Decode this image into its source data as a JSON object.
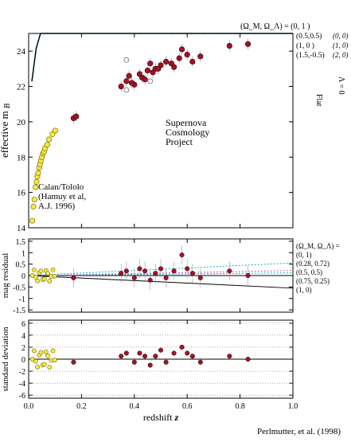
{
  "chart_data": [
    {
      "type": "scatter",
      "panel": "top",
      "ylabel": "effective m",
      "ylabel_sub": "B",
      "xlim": [
        0,
        1.0
      ],
      "ylim": [
        14,
        25
      ],
      "yticks": [
        14,
        16,
        18,
        20,
        22,
        24
      ],
      "legend_header": "(Ω_M, Ω_Λ) = (0,   1 )",
      "curves": [
        {
          "name": "(0.5,0.5)",
          "alt": "(0, 0)",
          "color": "#1bb0d8",
          "dashed": true,
          "offset": 0.35
        },
        {
          "name": "(1,   0 )",
          "alt": "(1, 0)",
          "color": "#1a90b8",
          "dashed": false,
          "offset": 0.0
        },
        {
          "name": "(1.5,-0.5)",
          "alt": "(2, 0)",
          "color": "#1a80a8",
          "dashed": false,
          "offset": -0.2
        },
        {
          "name": "",
          "alt": "",
          "color": "#000000",
          "dashed": false,
          "offset": 0.1
        }
      ],
      "flat_label": "Flat",
      "lambda_label": "Λ = 0",
      "annotations": [
        "Supernova",
        "Cosmology",
        "Project",
        "Calan/Tololo",
        "(Hamuy et al,",
        "A.J. 1996)"
      ],
      "low_z_points": [
        {
          "x": 0.014,
          "y": 14.4
        },
        {
          "x": 0.018,
          "y": 15.2
        },
        {
          "x": 0.022,
          "y": 15.6
        },
        {
          "x": 0.026,
          "y": 16.3
        },
        {
          "x": 0.03,
          "y": 16.6
        },
        {
          "x": 0.033,
          "y": 16.9
        },
        {
          "x": 0.036,
          "y": 17.1
        },
        {
          "x": 0.04,
          "y": 17.4
        },
        {
          "x": 0.043,
          "y": 17.6
        },
        {
          "x": 0.046,
          "y": 17.8
        },
        {
          "x": 0.05,
          "y": 18.0
        },
        {
          "x": 0.054,
          "y": 18.2
        },
        {
          "x": 0.058,
          "y": 18.3
        },
        {
          "x": 0.062,
          "y": 18.5
        },
        {
          "x": 0.07,
          "y": 18.7
        },
        {
          "x": 0.077,
          "y": 19.0
        },
        {
          "x": 0.09,
          "y": 19.3
        },
        {
          "x": 0.101,
          "y": 19.5
        }
      ],
      "high_z_points": [
        {
          "x": 0.17,
          "y": 20.2
        },
        {
          "x": 0.18,
          "y": 20.3
        },
        {
          "x": 0.35,
          "y": 22.0
        },
        {
          "x": 0.37,
          "y": 22.3
        },
        {
          "x": 0.38,
          "y": 22.6
        },
        {
          "x": 0.4,
          "y": 22.1
        },
        {
          "x": 0.42,
          "y": 22.7
        },
        {
          "x": 0.43,
          "y": 22.5
        },
        {
          "x": 0.45,
          "y": 22.9
        },
        {
          "x": 0.46,
          "y": 23.3
        },
        {
          "x": 0.47,
          "y": 22.8
        },
        {
          "x": 0.48,
          "y": 23.0
        },
        {
          "x": 0.5,
          "y": 23.2
        },
        {
          "x": 0.52,
          "y": 23.4
        },
        {
          "x": 0.55,
          "y": 23.1
        },
        {
          "x": 0.57,
          "y": 23.6
        },
        {
          "x": 0.6,
          "y": 23.8
        },
        {
          "x": 0.62,
          "y": 23.4
        },
        {
          "x": 0.65,
          "y": 23.7
        },
        {
          "x": 0.76,
          "y": 24.3
        },
        {
          "x": 0.83,
          "y": 24.4
        },
        {
          "x": 0.39,
          "y": 22.2
        },
        {
          "x": 0.44,
          "y": 22.4
        },
        {
          "x": 0.49,
          "y": 23.0
        },
        {
          "x": 0.54,
          "y": 23.3
        },
        {
          "x": 0.58,
          "y": 24.1
        }
      ],
      "hollow_points": [
        {
          "x": 0.37,
          "y": 23.5
        },
        {
          "x": 0.37,
          "y": 21.8
        },
        {
          "x": 0.46,
          "y": 22.3
        }
      ]
    },
    {
      "type": "scatter",
      "panel": "middle",
      "ylabel": "mag residual",
      "xlim": [
        0,
        1.0
      ],
      "ylim": [
        -1.6,
        1.6
      ],
      "yticks": [
        1.5,
        1.0,
        0.5,
        0,
        -0.5,
        -1.0,
        -1.5
      ],
      "ytick_labels": [
        "1.5",
        "1",
        "0.5",
        "0",
        "-0.5",
        "-1",
        "-1.5"
      ],
      "legend": [
        {
          "name": "(Ω_M, Ω_Λ) =",
          "color": "#9a80c8"
        },
        {
          "name": "(0,      1)",
          "color": "#1bb0d8",
          "slope": 0.55
        },
        {
          "name": "(0.28,  0.72)",
          "color": "#000000",
          "slope": 0.0
        },
        {
          "name": "(0.5,   0.5)",
          "color": "#c060c0",
          "slope": 0.22
        },
        {
          "name": "(0.75,  0.25)",
          "color": "#1bb0d8",
          "slope": 0.12
        },
        {
          "name": "(1,      0)",
          "color": "#000000",
          "slope": -0.55
        }
      ],
      "points": [
        {
          "x": 0.17,
          "y": -0.1
        },
        {
          "x": 0.35,
          "y": 0.1
        },
        {
          "x": 0.37,
          "y": 0.2
        },
        {
          "x": 0.4,
          "y": -0.1
        },
        {
          "x": 0.42,
          "y": 0.3
        },
        {
          "x": 0.44,
          "y": 0.2
        },
        {
          "x": 0.46,
          "y": -0.2
        },
        {
          "x": 0.48,
          "y": 0.1
        },
        {
          "x": 0.5,
          "y": 0.3
        },
        {
          "x": 0.52,
          "y": -0.1
        },
        {
          "x": 0.55,
          "y": 0.2
        },
        {
          "x": 0.58,
          "y": 0.9
        },
        {
          "x": 0.6,
          "y": 0.3
        },
        {
          "x": 0.62,
          "y": 0.1
        },
        {
          "x": 0.65,
          "y": -0.1
        },
        {
          "x": 0.76,
          "y": 0.2
        },
        {
          "x": 0.83,
          "y": 0.0
        }
      ]
    },
    {
      "type": "scatter",
      "panel": "bottom",
      "ylabel": "standard deviation",
      "xlabel": "redshift",
      "xlabel_var": "z",
      "xlim": [
        0,
        1.0
      ],
      "ylim": [
        -6.5,
        6.5
      ],
      "xticks": [
        0,
        0.2,
        0.4,
        0.6,
        0.8,
        1.0
      ],
      "xtick_labels": [
        "0.0",
        "0.2",
        "0.4",
        "0.6",
        "0.8",
        "1.0"
      ],
      "yticks": [
        6,
        4,
        2,
        0,
        -2,
        -4,
        -6
      ],
      "points": [
        {
          "x": 0.17,
          "y": -0.5
        },
        {
          "x": 0.35,
          "y": 0.5
        },
        {
          "x": 0.37,
          "y": 1.0
        },
        {
          "x": 0.4,
          "y": -0.5
        },
        {
          "x": 0.42,
          "y": 1.0
        },
        {
          "x": 0.44,
          "y": 0.5
        },
        {
          "x": 0.46,
          "y": -1.0
        },
        {
          "x": 0.48,
          "y": 0.5
        },
        {
          "x": 0.5,
          "y": 1.5
        },
        {
          "x": 0.52,
          "y": -0.5
        },
        {
          "x": 0.55,
          "y": 1.0
        },
        {
          "x": 0.58,
          "y": 2.0
        },
        {
          "x": 0.6,
          "y": 1.0
        },
        {
          "x": 0.62,
          "y": 0.5
        },
        {
          "x": 0.65,
          "y": -0.5
        },
        {
          "x": 0.76,
          "y": 0.5
        },
        {
          "x": 0.83,
          "y": 0.0
        }
      ]
    }
  ],
  "credit": "Perlmutter, et al. (1998)"
}
